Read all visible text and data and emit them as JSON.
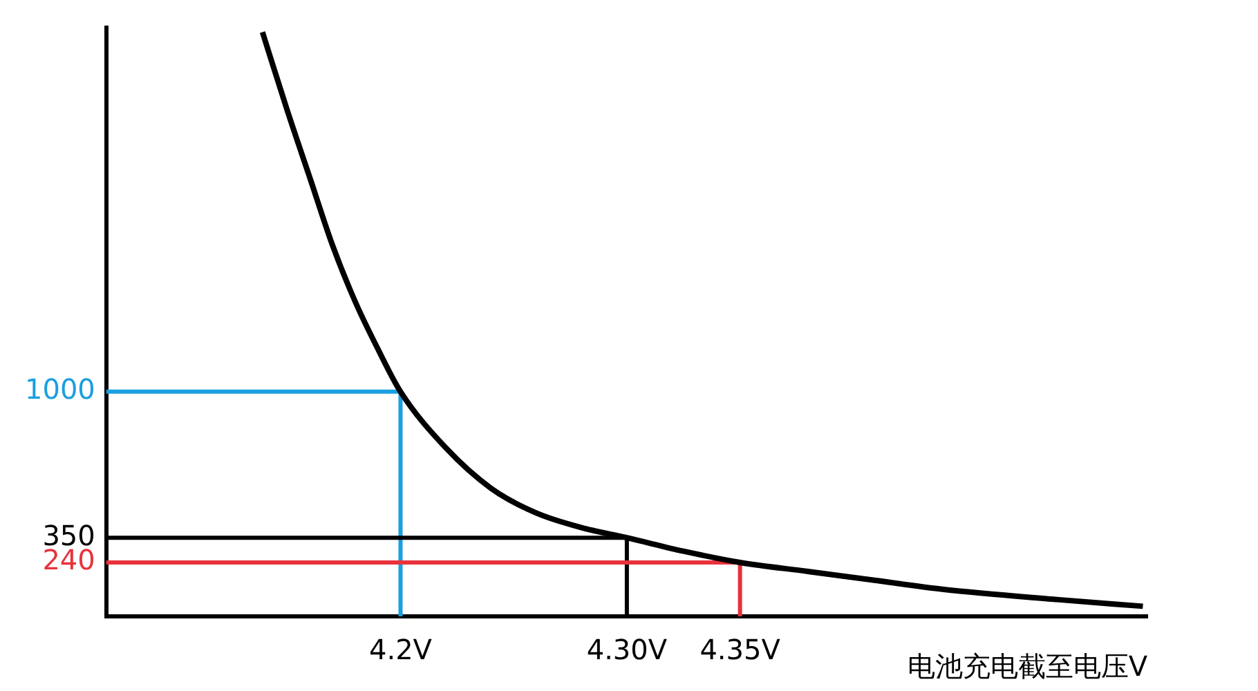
{
  "chart_data": {
    "type": "line",
    "xlabel": "电池充电截至电压V",
    "x": [
      4.139,
      4.15,
      4.16,
      4.17,
      4.18,
      4.19,
      4.2,
      4.22,
      4.24,
      4.26,
      4.28,
      4.3,
      4.325,
      4.35,
      4.38,
      4.41,
      4.44,
      4.49,
      4.528
    ],
    "series": [
      {
        "color": "#000000",
        "values": [
          2600,
          2250,
          1950,
          1650,
          1400,
          1190,
          1000,
          750,
          570,
          460,
          395,
          350,
          290,
          240,
          200,
          160,
          120,
          75,
          45
        ]
      }
    ],
    "xlim": [
      4.07,
      4.53
    ],
    "xticks": [
      {
        "value": 4.2,
        "label": "4.2V"
      },
      {
        "value": 4.3,
        "label": "4.30V"
      },
      {
        "value": 4.35,
        "label": "4.35V"
      }
    ],
    "ylim": [
      0,
      2620
    ],
    "yticks": [
      240,
      350,
      1000
    ],
    "ref_lines": [
      {
        "axis": "y",
        "value": 1000,
        "color": "#1a9fe0"
      },
      {
        "axis": "x",
        "value": 4.2,
        "color": "#1a9fe0"
      },
      {
        "axis": "y",
        "value": 350,
        "color": "#000000"
      },
      {
        "axis": "x",
        "value": 4.3,
        "color": "#000000"
      },
      {
        "axis": "y",
        "value": 240,
        "color": "#e8323c"
      },
      {
        "axis": "x",
        "value": 4.35,
        "color": "#e8323c"
      }
    ],
    "grid": false,
    "legend": false,
    "marker": "none",
    "line_style": "solid"
  }
}
